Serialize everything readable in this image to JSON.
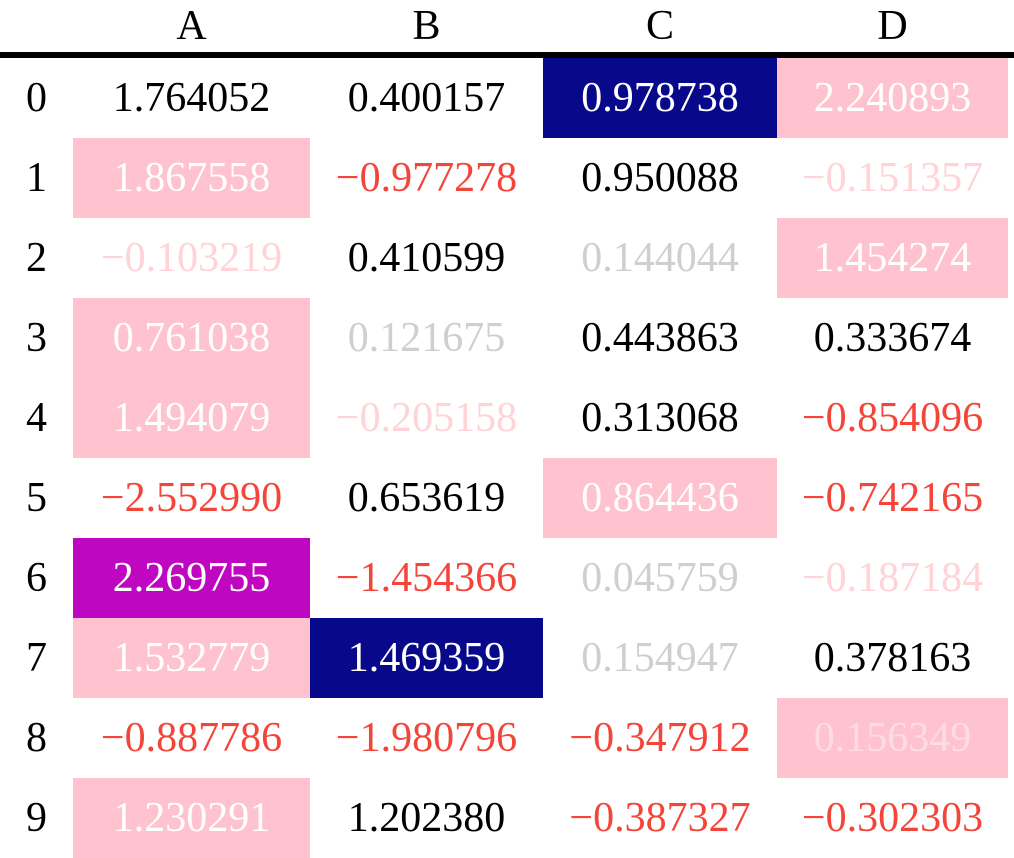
{
  "table": {
    "columns": [
      "A",
      "B",
      "C",
      "D"
    ],
    "rows": [
      {
        "index": "0",
        "cells": [
          {
            "v": "1.764052",
            "style": "black"
          },
          {
            "v": "0.400157",
            "style": "black"
          },
          {
            "v": "0.978738",
            "style": "white-on-darkblue"
          },
          {
            "v": "2.240893",
            "style": "white-on-pink"
          }
        ]
      },
      {
        "index": "1",
        "cells": [
          {
            "v": "1.867558",
            "style": "white-on-pink"
          },
          {
            "v": "−0.977278",
            "style": "red"
          },
          {
            "v": "0.950088",
            "style": "black"
          },
          {
            "v": "−0.151357",
            "style": "faded-red"
          }
        ]
      },
      {
        "index": "2",
        "cells": [
          {
            "v": "−0.103219",
            "style": "faded-red"
          },
          {
            "v": "0.410599",
            "style": "black"
          },
          {
            "v": "0.144044",
            "style": "faded-black"
          },
          {
            "v": "1.454274",
            "style": "white-on-pink"
          }
        ]
      },
      {
        "index": "3",
        "cells": [
          {
            "v": "0.761038",
            "style": "white-on-pink"
          },
          {
            "v": "0.121675",
            "style": "faded-black"
          },
          {
            "v": "0.443863",
            "style": "black"
          },
          {
            "v": "0.333674",
            "style": "black"
          }
        ]
      },
      {
        "index": "4",
        "cells": [
          {
            "v": "1.494079",
            "style": "white-on-pink"
          },
          {
            "v": "−0.205158",
            "style": "faded-red"
          },
          {
            "v": "0.313068",
            "style": "black"
          },
          {
            "v": "−0.854096",
            "style": "red"
          }
        ]
      },
      {
        "index": "5",
        "cells": [
          {
            "v": "−2.552990",
            "style": "red"
          },
          {
            "v": "0.653619",
            "style": "black"
          },
          {
            "v": "0.864436",
            "style": "white-on-pink"
          },
          {
            "v": "−0.742165",
            "style": "red"
          }
        ]
      },
      {
        "index": "6",
        "cells": [
          {
            "v": "2.269755",
            "style": "white-on-purple"
          },
          {
            "v": "−1.454366",
            "style": "red"
          },
          {
            "v": "0.045759",
            "style": "faded-black"
          },
          {
            "v": "−0.187184",
            "style": "faded-red"
          }
        ]
      },
      {
        "index": "7",
        "cells": [
          {
            "v": "1.532779",
            "style": "white-on-pink"
          },
          {
            "v": "1.469359",
            "style": "white-on-darkblue"
          },
          {
            "v": "0.154947",
            "style": "faded-black"
          },
          {
            "v": "0.378163",
            "style": "black"
          }
        ]
      },
      {
        "index": "8",
        "cells": [
          {
            "v": "−0.887786",
            "style": "red"
          },
          {
            "v": "−1.980796",
            "style": "red"
          },
          {
            "v": "−0.347912",
            "style": "red"
          },
          {
            "v": "0.156349",
            "style": "faded-white-on-pink"
          }
        ]
      },
      {
        "index": "9",
        "cells": [
          {
            "v": "1.230291",
            "style": "white-on-pink"
          },
          {
            "v": "1.202380",
            "style": "black"
          },
          {
            "v": "−0.387327",
            "style": "red"
          },
          {
            "v": "−0.302303",
            "style": "red"
          }
        ]
      }
    ]
  },
  "colors": {
    "black_text": "#000000",
    "red_text": "#F4453A",
    "faded_black_text": "#CFCFCF",
    "faded_red_text": "#FFD3D8",
    "white_text": "#FFFFFF",
    "pink_bg": "#FEC3CF",
    "darkblue_bg": "#08088A",
    "purple_bg": "#BF06C0",
    "header_rule": "#000000"
  },
  "chart_data": {
    "type": "table",
    "title": "Styled DataFrame (negatives red, |v|<0.3 faded, row max pink, column max dark blue, overall max purple)",
    "columns": [
      "A",
      "B",
      "C",
      "D"
    ],
    "index": [
      "0",
      "1",
      "2",
      "3",
      "4",
      "5",
      "6",
      "7",
      "8",
      "9"
    ],
    "values": [
      [
        1.764052,
        0.400157,
        0.978738,
        2.240893
      ],
      [
        1.867558,
        -0.977278,
        0.950088,
        -0.151357
      ],
      [
        -0.103219,
        0.410599,
        0.144044,
        1.454274
      ],
      [
        0.761038,
        0.121675,
        0.443863,
        0.333674
      ],
      [
        1.494079,
        -0.205158,
        0.313068,
        -0.854096
      ],
      [
        -2.55299,
        0.653619,
        0.864436,
        -0.742165
      ],
      [
        2.269755,
        -1.454366,
        0.045759,
        -0.187184
      ],
      [
        1.532779,
        1.469359,
        0.154947,
        0.378163
      ],
      [
        -0.887786,
        -1.980796,
        -0.347912,
        0.156349
      ],
      [
        1.230291,
        1.20238,
        -0.387327,
        -0.302303
      ]
    ]
  }
}
